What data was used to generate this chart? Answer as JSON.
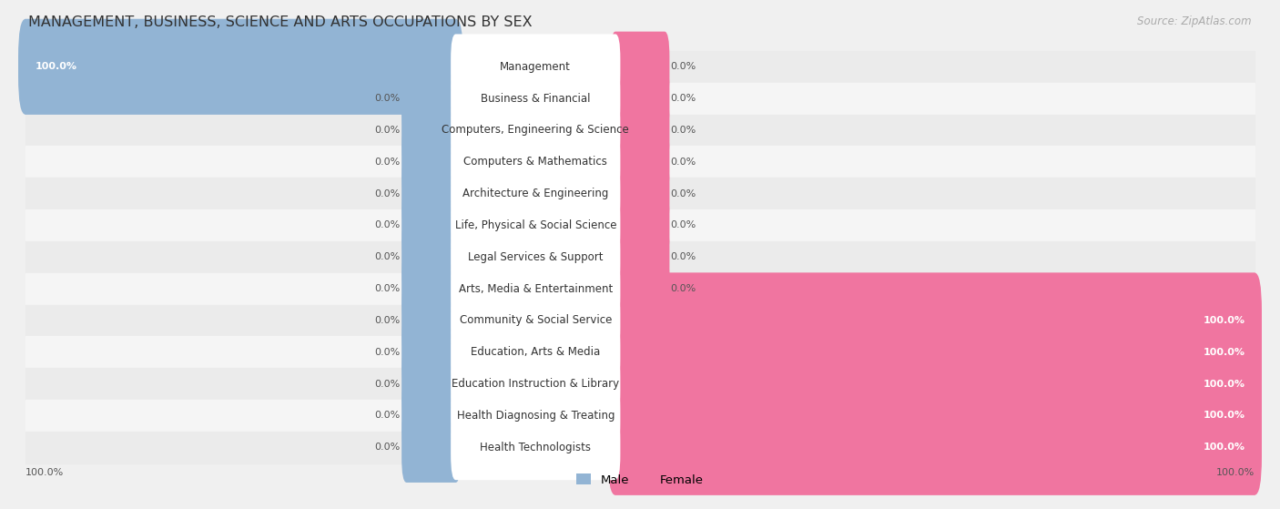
{
  "title": "MANAGEMENT, BUSINESS, SCIENCE AND ARTS OCCUPATIONS BY SEX",
  "source": "Source: ZipAtlas.com",
  "categories": [
    "Management",
    "Business & Financial",
    "Computers, Engineering & Science",
    "Computers & Mathematics",
    "Architecture & Engineering",
    "Life, Physical & Social Science",
    "Legal Services & Support",
    "Arts, Media & Entertainment",
    "Community & Social Service",
    "Education, Arts & Media",
    "Education Instruction & Library",
    "Health Diagnosing & Treating",
    "Health Technologists"
  ],
  "male": [
    100.0,
    0.0,
    0.0,
    0.0,
    0.0,
    0.0,
    0.0,
    0.0,
    0.0,
    0.0,
    0.0,
    0.0,
    0.0
  ],
  "female": [
    0.0,
    0.0,
    0.0,
    0.0,
    0.0,
    0.0,
    0.0,
    0.0,
    100.0,
    100.0,
    100.0,
    100.0,
    100.0
  ],
  "male_color": "#92b4d4",
  "female_color": "#f075a0",
  "male_label": "Male",
  "female_label": "Female",
  "bg_color": "#f0f0f0",
  "label_fontsize": 8.5,
  "title_fontsize": 11.5,
  "value_fontsize": 8.0
}
